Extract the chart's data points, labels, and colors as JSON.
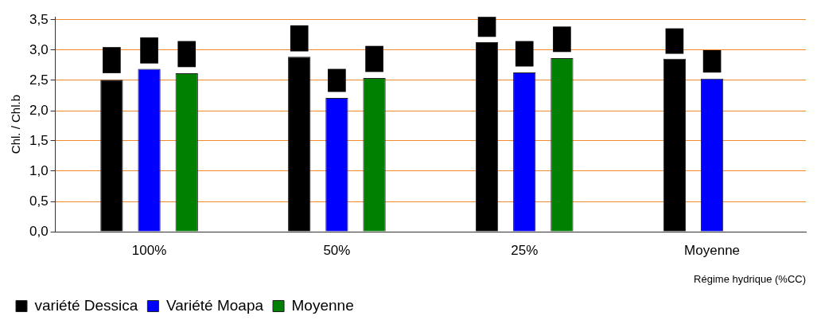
{
  "chart_data": {
    "type": "bar",
    "ylabel": "Chl. / Chl.b",
    "xlabel": "Régime hydrique (%CC)",
    "categories": [
      "100%",
      "50%",
      "25%",
      "Moyenne"
    ],
    "series": [
      {
        "name": "variété Dessica",
        "color": "#000000",
        "values": [
          2.51,
          2.89,
          3.13,
          2.86
        ],
        "errors": [
          [
            2.62,
            3.05
          ],
          [
            2.98,
            3.41
          ],
          [
            3.22,
            3.55
          ],
          [
            2.94,
            3.36
          ]
        ]
      },
      {
        "name": "Variété Moapa",
        "color": "#0000ff",
        "values": [
          2.69,
          2.21,
          2.63,
          2.53
        ],
        "errors": [
          [
            2.78,
            3.21
          ],
          [
            2.31,
            2.69
          ],
          [
            2.73,
            3.15
          ],
          [
            2.63,
            3.0
          ]
        ]
      },
      {
        "name": "Moyenne",
        "color": "#008000",
        "values": [
          2.62,
          2.54,
          2.87,
          null
        ],
        "errors": [
          [
            2.72,
            3.15
          ],
          [
            2.64,
            3.07
          ],
          [
            2.97,
            3.39
          ],
          null
        ]
      }
    ],
    "ylim": [
      0,
      3.55
    ],
    "yticks": [
      {
        "value": 0,
        "label": "0,0"
      },
      {
        "value": 0.5,
        "label": "0,5"
      },
      {
        "value": 1,
        "label": "1,0"
      },
      {
        "value": 1.5,
        "label": "1,5"
      },
      {
        "value": 2,
        "label": "2,0"
      },
      {
        "value": 2.5,
        "label": "2,5"
      },
      {
        "value": 3,
        "label": "3,0"
      },
      {
        "value": 3.5,
        "label": "3,5"
      }
    ],
    "grid": "y",
    "legend": "bottom left"
  }
}
